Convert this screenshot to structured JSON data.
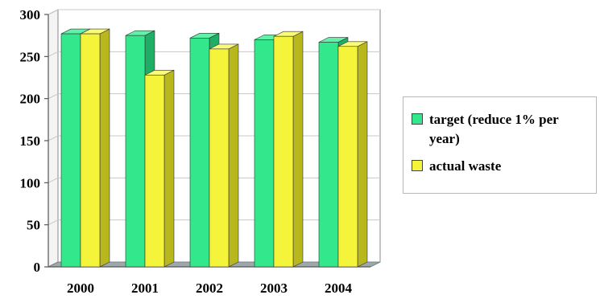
{
  "chart_data": {
    "type": "bar",
    "categories": [
      "2000",
      "2001",
      "2002",
      "2003",
      "2004"
    ],
    "series": [
      {
        "name": "target (reduce 1% per year)",
        "values": [
          277,
          275,
          272,
          270,
          267
        ],
        "color": "#33e88c",
        "side_color": "#1fae66",
        "top_color": "#5ff2a8"
      },
      {
        "name": "actual waste",
        "values": [
          277,
          228,
          259,
          274,
          262
        ],
        "color": "#f4f43a",
        "side_color": "#b8b81c",
        "top_color": "#fafa7a"
      }
    ],
    "ylim": [
      0,
      300
    ],
    "yticks": [
      "0",
      "50",
      "100",
      "150",
      "200",
      "250",
      "300"
    ],
    "ytick_values": [
      0,
      50,
      100,
      150,
      200,
      250,
      300
    ],
    "xlabel": "",
    "ylabel": "",
    "grid": true,
    "legend_placement": "right",
    "style": {
      "grid_color": "#c8c8c8",
      "wall_color": "#ffffff",
      "floor_color": "#9ea7ab",
      "axis_color": "#888888"
    }
  }
}
